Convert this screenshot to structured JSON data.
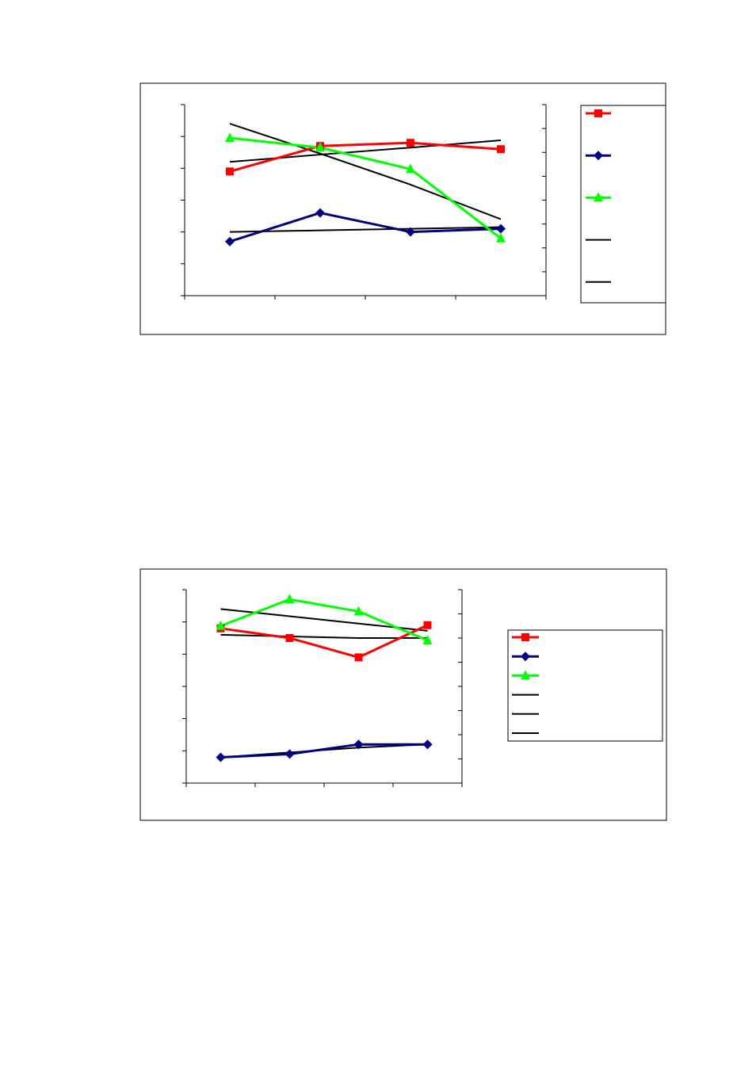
{
  "colors": {
    "red": "#ff0000",
    "navy": "#000080",
    "green": "#00ff00",
    "black": "#000000"
  },
  "chart_data": [
    {
      "type": "line",
      "title": "",
      "xlabel": "",
      "ylabel": "",
      "y2label": "",
      "x": [
        1,
        2,
        3,
        4
      ],
      "xlim": [
        0.5,
        4.5
      ],
      "ylim": [
        0,
        6
      ],
      "y2lim": [
        0,
        8
      ],
      "grid": false,
      "legend": {
        "position": "right",
        "entries": 5
      },
      "series": [
        {
          "color": "#ff0000",
          "marker": "square",
          "axis": "left",
          "values": [
            3.9,
            4.7,
            4.8,
            4.6
          ]
        },
        {
          "color": "#000080",
          "marker": "diamond",
          "axis": "left",
          "values": [
            1.7,
            2.6,
            2.0,
            2.1
          ]
        },
        {
          "color": "#00ff00",
          "marker": "triangle",
          "axis": "right",
          "values": [
            6.6,
            6.2,
            5.3,
            2.4
          ]
        },
        {
          "color": "#000000",
          "marker": "none",
          "axis": "left",
          "trend": true,
          "values": [
            4.2,
            4.43,
            4.65,
            4.88
          ]
        },
        {
          "color": "#000000",
          "marker": "none",
          "axis": "right",
          "trend": true,
          "values": [
            7.2,
            5.95,
            4.65,
            3.2
          ]
        },
        {
          "color": "#000000",
          "marker": "none",
          "axis": "left",
          "trend": true,
          "legend": false,
          "values": [
            2.0,
            2.05,
            2.1,
            2.15
          ]
        }
      ]
    },
    {
      "type": "line",
      "title": "",
      "xlabel": "",
      "ylabel": "",
      "y2label": "",
      "x": [
        1,
        2,
        3,
        4
      ],
      "xlim": [
        0.5,
        4.5
      ],
      "ylim": [
        0,
        6
      ],
      "y2lim": [
        0,
        8
      ],
      "grid": false,
      "legend": {
        "position": "right",
        "entries": 6
      },
      "series": [
        {
          "color": "#ff0000",
          "marker": "square",
          "axis": "left",
          "values": [
            4.8,
            4.5,
            3.9,
            4.9
          ]
        },
        {
          "color": "#000080",
          "marker": "diamond",
          "axis": "left",
          "values": [
            0.8,
            0.9,
            1.2,
            1.2
          ]
        },
        {
          "color": "#00ff00",
          "marker": "triangle",
          "axis": "right",
          "values": [
            6.5,
            7.6,
            7.1,
            5.9
          ]
        },
        {
          "color": "#000000",
          "marker": "none",
          "axis": "left",
          "trend": true,
          "values": [
            4.6,
            4.55,
            4.5,
            4.5
          ]
        },
        {
          "color": "#000000",
          "marker": "none",
          "axis": "right",
          "trend": true,
          "values": [
            7.2,
            6.9,
            6.6,
            6.3
          ]
        },
        {
          "color": "#000000",
          "marker": "none",
          "axis": "left",
          "trend": true,
          "values": [
            0.8,
            0.95,
            1.1,
            1.2
          ]
        }
      ]
    }
  ]
}
